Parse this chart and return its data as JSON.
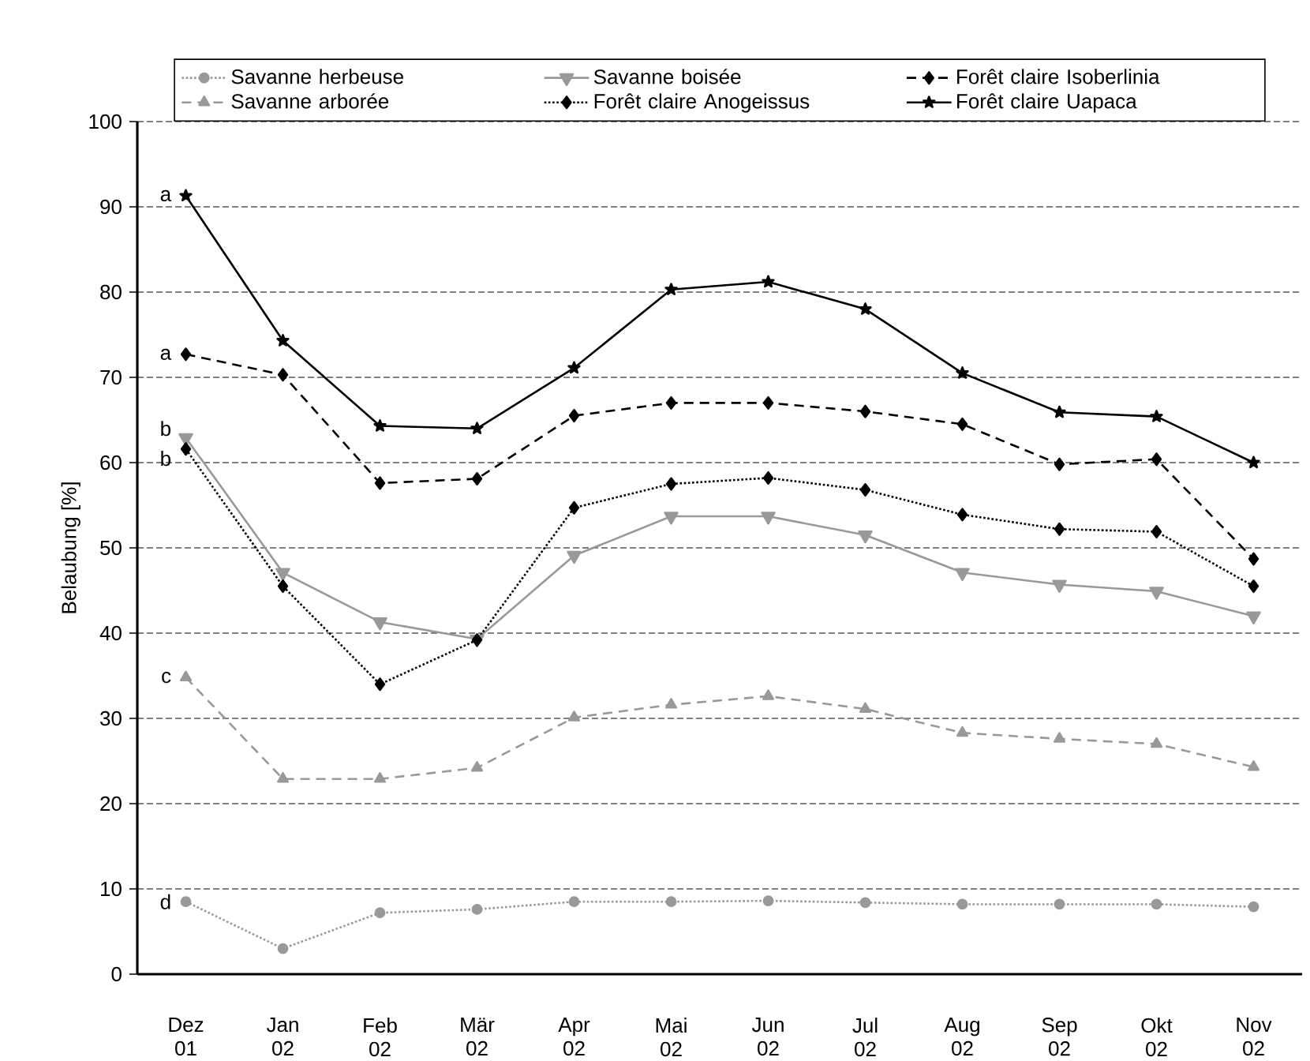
{
  "chart_data": {
    "type": "line",
    "ylabel": "Belaubung [%]",
    "categories": [
      "Dez 01",
      "Jan 02",
      "Feb 02",
      "Mär 02",
      "Apr 02",
      "Mai 02",
      "Jun 02",
      "Jul 02",
      "Aug 02",
      "Sep 02",
      "Okt 02",
      "Nov 02"
    ],
    "series": [
      {
        "name": "Savanne herbeuse",
        "color": "#999999",
        "marker": "circle",
        "line_style": "dotted",
        "values": [
          8.5,
          3.0,
          7.2,
          7.6,
          8.5,
          8.5,
          8.6,
          8.4,
          8.2,
          8.2,
          8.2,
          7.9
        ]
      },
      {
        "name": "Savanne boisée",
        "color": "#999999",
        "marker": "triangle-down",
        "line_style": "solid",
        "values": [
          62.9,
          47.1,
          41.3,
          39.3,
          49.1,
          53.7,
          53.7,
          51.5,
          47.1,
          45.7,
          44.9,
          42.0
        ]
      },
      {
        "name": "Forêt claire Isoberlinia",
        "color": "#000000",
        "marker": "diamond",
        "line_style": "dashed",
        "values": [
          72.7,
          70.3,
          57.6,
          58.1,
          65.5,
          67.0,
          67.0,
          66.0,
          64.5,
          59.8,
          60.4,
          48.7
        ]
      },
      {
        "name": "Savanne arborée",
        "color": "#999999",
        "marker": "triangle",
        "line_style": "dashed",
        "values": [
          34.8,
          22.9,
          22.9,
          24.2,
          30.1,
          31.6,
          32.6,
          31.1,
          28.3,
          27.6,
          27.0,
          24.3
        ]
      },
      {
        "name": "Forêt claire Anogeissus",
        "color": "#000000",
        "marker": "diamond",
        "line_style": "dotted",
        "values": [
          61.6,
          45.5,
          34.0,
          39.2,
          54.7,
          57.5,
          58.2,
          56.8,
          53.9,
          52.2,
          51.9,
          45.5
        ]
      },
      {
        "name": "Forêt claire Uapaca",
        "color": "#000000",
        "marker": "star",
        "line_style": "solid",
        "values": [
          91.3,
          74.3,
          64.3,
          64.0,
          71.1,
          80.3,
          81.2,
          78.0,
          70.5,
          65.9,
          65.4,
          60.0
        ]
      }
    ],
    "ylim": [
      0,
      100
    ],
    "yticks": [
      0,
      10,
      20,
      30,
      40,
      50,
      60,
      70,
      80,
      90,
      100
    ],
    "grid": "y",
    "legend": "top",
    "annotations": [
      {
        "text": "a",
        "x": "Dez 01",
        "y": 91.3
      },
      {
        "text": "a",
        "x": "Dez 01",
        "y": 72.7
      },
      {
        "text": "b",
        "x": "Dez 01",
        "y": 62.9
      },
      {
        "text": "b",
        "x": "Dez 01",
        "y": 61.6
      },
      {
        "text": "c",
        "x": "Dez 01",
        "y": 34.8
      },
      {
        "text": "d",
        "x": "Dez 01",
        "y": 8.5
      }
    ]
  }
}
